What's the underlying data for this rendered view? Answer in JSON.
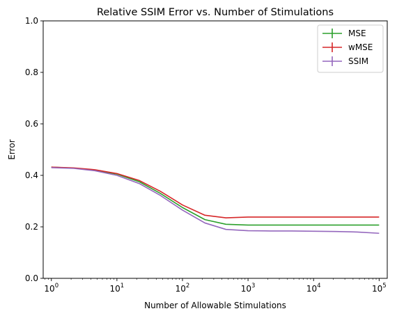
{
  "chart_data": {
    "type": "line",
    "title": "Relative SSIM Error vs. Number of Stimulations",
    "xlabel": "Number of Allowable Stimulations",
    "ylabel": "Error",
    "xscale": "log",
    "xlim": [
      0.75,
      133000
    ],
    "ylim": [
      0,
      1
    ],
    "xticks": [
      {
        "value": 1,
        "base": "10",
        "exp": "0"
      },
      {
        "value": 10,
        "base": "10",
        "exp": "1"
      },
      {
        "value": 100,
        "base": "10",
        "exp": "2"
      },
      {
        "value": 1000,
        "base": "10",
        "exp": "3"
      },
      {
        "value": 10000,
        "base": "10",
        "exp": "4"
      },
      {
        "value": 100000,
        "base": "10",
        "exp": "5"
      }
    ],
    "yticks": [
      {
        "value": 0,
        "label": "0.0"
      },
      {
        "value": 0.2,
        "label": "0.2"
      },
      {
        "value": 0.4,
        "label": "0.4"
      },
      {
        "value": 0.6,
        "label": "0.6"
      },
      {
        "value": 0.8,
        "label": "0.8"
      },
      {
        "value": 1.0,
        "label": "1.0"
      }
    ],
    "grid": false,
    "legend": "top-right",
    "series": [
      {
        "name": "MSE",
        "color": "#2ca02c",
        "x": [
          1,
          2.2,
          4.6,
          10,
          22,
          46,
          100,
          220,
          460,
          1000,
          2200,
          4600,
          10000,
          22000,
          46000,
          100000
        ],
        "y": [
          0.432,
          0.428,
          0.42,
          0.405,
          0.375,
          0.33,
          0.275,
          0.228,
          0.21,
          0.207,
          0.207,
          0.207,
          0.207,
          0.207,
          0.207,
          0.207
        ]
      },
      {
        "name": "wMSE",
        "color": "#d62728",
        "x": [
          1,
          2.2,
          4.6,
          10,
          22,
          46,
          100,
          220,
          460,
          1000,
          2200,
          4600,
          10000,
          22000,
          46000,
          100000
        ],
        "y": [
          0.432,
          0.429,
          0.422,
          0.407,
          0.38,
          0.338,
          0.285,
          0.245,
          0.235,
          0.238,
          0.238,
          0.238,
          0.238,
          0.238,
          0.238,
          0.238
        ]
      },
      {
        "name": "SSIM",
        "color": "#9467bd",
        "x": [
          1,
          2.2,
          4.6,
          10,
          22,
          46,
          100,
          220,
          460,
          1000,
          2200,
          4600,
          10000,
          22000,
          46000,
          100000
        ],
        "y": [
          0.43,
          0.427,
          0.418,
          0.4,
          0.368,
          0.322,
          0.265,
          0.215,
          0.19,
          0.185,
          0.184,
          0.184,
          0.183,
          0.182,
          0.18,
          0.175
        ]
      }
    ]
  }
}
